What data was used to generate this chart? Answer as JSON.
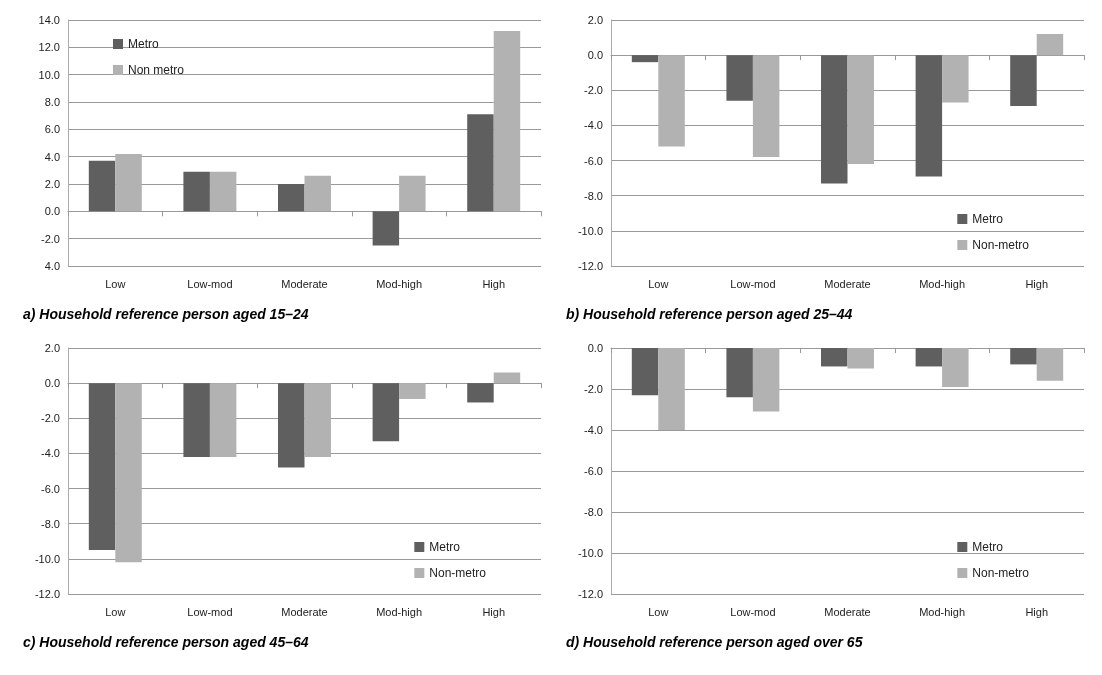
{
  "chart_data": [
    {
      "type": "bar",
      "title": "a) Household reference person aged 15–24",
      "categories": [
        "Low",
        "Low-mod",
        "Moderate",
        "Mod-high",
        "High"
      ],
      "series": [
        {
          "name": "Metro",
          "color": "#5f5f5f",
          "values": [
            3.7,
            2.9,
            2.0,
            -2.5,
            7.1
          ]
        },
        {
          "name": "Non metro",
          "color": "#b2b2b2",
          "values": [
            4.2,
            2.9,
            2.6,
            2.6,
            13.2
          ]
        }
      ],
      "ylim": [
        -4,
        14
      ],
      "yticks": [
        {
          "value": -4,
          "label": "4.0"
        },
        {
          "value": -2,
          "label": "-2.0"
        },
        {
          "value": 0,
          "label": "0.0"
        },
        {
          "value": 2,
          "label": "2.0"
        },
        {
          "value": 4,
          "label": "4.0"
        },
        {
          "value": 6,
          "label": "6.0"
        },
        {
          "value": 8,
          "label": "8.0"
        },
        {
          "value": 10,
          "label": "10.0"
        },
        {
          "value": 12,
          "label": "12.0"
        },
        {
          "value": 14,
          "label": "14.0"
        }
      ],
      "grid": "y",
      "legend": "top left"
    },
    {
      "type": "bar",
      "title": "b) Household reference person aged 25–44",
      "categories": [
        "Low",
        "Low-mod",
        "Moderate",
        "Mod-high",
        "High"
      ],
      "series": [
        {
          "name": "Metro",
          "color": "#5f5f5f",
          "values": [
            -0.4,
            -2.6,
            -7.3,
            -6.9,
            -2.9
          ]
        },
        {
          "name": "Non-metro",
          "color": "#b2b2b2",
          "values": [
            -5.2,
            -5.8,
            -6.2,
            -2.7,
            1.2
          ]
        }
      ],
      "ylim": [
        -12,
        2
      ],
      "yticks": [
        {
          "value": -12,
          "label": "-12.0"
        },
        {
          "value": -10,
          "label": "-10.0"
        },
        {
          "value": -8,
          "label": "-8.0"
        },
        {
          "value": -6,
          "label": "-6.0"
        },
        {
          "value": -4,
          "label": "-4.0"
        },
        {
          "value": -2,
          "label": "-2.0"
        },
        {
          "value": 0,
          "label": "0.0"
        },
        {
          "value": 2,
          "label": "2.0"
        }
      ],
      "grid": "y",
      "legend": "bottom right"
    },
    {
      "type": "bar",
      "title": "c) Household reference person aged 45–64",
      "categories": [
        "Low",
        "Low-mod",
        "Moderate",
        "Mod-high",
        "High"
      ],
      "series": [
        {
          "name": "Metro",
          "color": "#5f5f5f",
          "values": [
            -9.5,
            -4.2,
            -4.8,
            -3.3,
            -1.1
          ]
        },
        {
          "name": "Non-metro",
          "color": "#b2b2b2",
          "values": [
            -10.2,
            -4.2,
            -4.2,
            -0.9,
            0.6
          ]
        }
      ],
      "ylim": [
        -12,
        2
      ],
      "yticks": [
        {
          "value": -12,
          "label": "-12.0"
        },
        {
          "value": -10,
          "label": "-10.0"
        },
        {
          "value": -8,
          "label": "-8.0"
        },
        {
          "value": -6,
          "label": "-6.0"
        },
        {
          "value": -4,
          "label": "-4.0"
        },
        {
          "value": -2,
          "label": "-2.0"
        },
        {
          "value": 0,
          "label": "0.0"
        },
        {
          "value": 2,
          "label": "2.0"
        }
      ],
      "grid": "y",
      "legend": "bottom right"
    },
    {
      "type": "bar",
      "title": "d) Household reference person aged over 65",
      "categories": [
        "Low",
        "Low-mod",
        "Moderate",
        "Mod-high",
        "High"
      ],
      "series": [
        {
          "name": "Metro",
          "color": "#5f5f5f",
          "values": [
            -2.3,
            -2.4,
            -0.9,
            -0.9,
            -0.8
          ]
        },
        {
          "name": "Non-metro",
          "color": "#b2b2b2",
          "values": [
            -4.0,
            -3.1,
            -1.0,
            -1.9,
            -1.6
          ]
        }
      ],
      "ylim": [
        -12,
        0
      ],
      "yticks": [
        {
          "value": -12,
          "label": "-12.0"
        },
        {
          "value": -10,
          "label": "-10.0"
        },
        {
          "value": -8,
          "label": "-8.0"
        },
        {
          "value": -6,
          "label": "-6.0"
        },
        {
          "value": -4,
          "label": "-4.0"
        },
        {
          "value": -2,
          "label": "-2.0"
        },
        {
          "value": 0,
          "label": "0.0"
        }
      ],
      "grid": "y",
      "legend": "bottom right"
    }
  ]
}
